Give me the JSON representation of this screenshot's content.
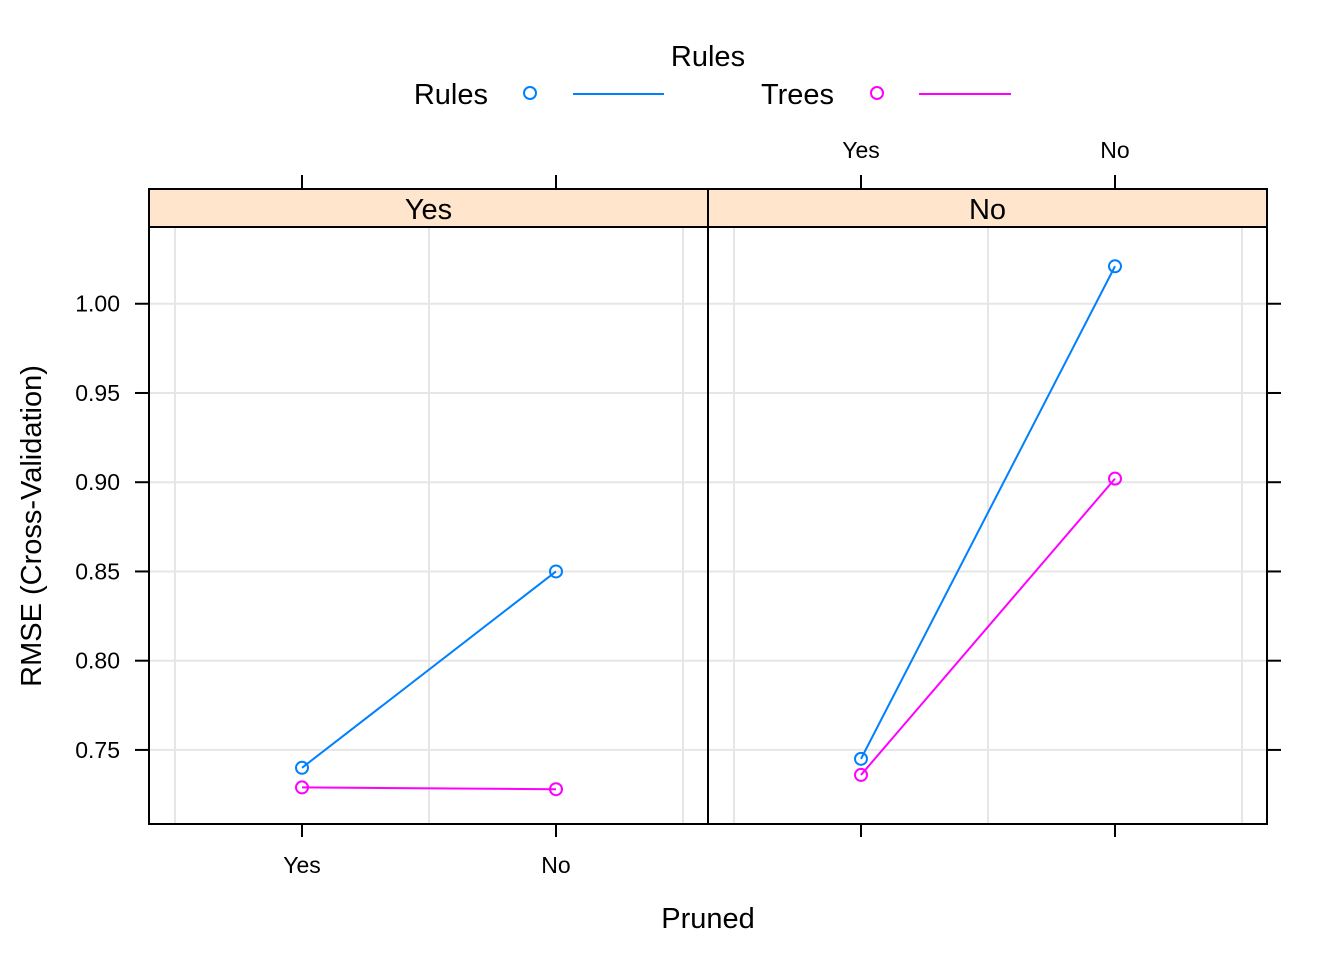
{
  "chart_data": {
    "type": "line",
    "legend_title": "Rules",
    "legend_position": "top",
    "xlabel": "Pruned",
    "ylabel": "RMSE (Cross-Validation)",
    "categories": [
      "Yes",
      "No"
    ],
    "ylim": [
      0.7085,
      1.043
    ],
    "yticks": [
      0.75,
      0.8,
      0.85,
      0.9,
      0.95,
      1.0
    ],
    "ytick_labels": [
      "0.75",
      "0.80",
      "0.85",
      "0.90",
      "0.95",
      "1.00"
    ],
    "grid": true,
    "colors": {
      "Rules": "#0080ff",
      "Trees": "#ff00ff",
      "strip": "#ffe5cc",
      "grid": "#e6e6e6"
    },
    "panels": [
      {
        "strip": "Yes",
        "series": [
          {
            "name": "Rules",
            "values": [
              0.74,
              0.85
            ]
          },
          {
            "name": "Trees",
            "values": [
              0.729,
              0.728
            ]
          }
        ]
      },
      {
        "strip": "No",
        "series": [
          {
            "name": "Rules",
            "values": [
              0.745,
              1.021
            ]
          },
          {
            "name": "Trees",
            "values": [
              0.736,
              0.902
            ]
          }
        ]
      }
    ]
  }
}
